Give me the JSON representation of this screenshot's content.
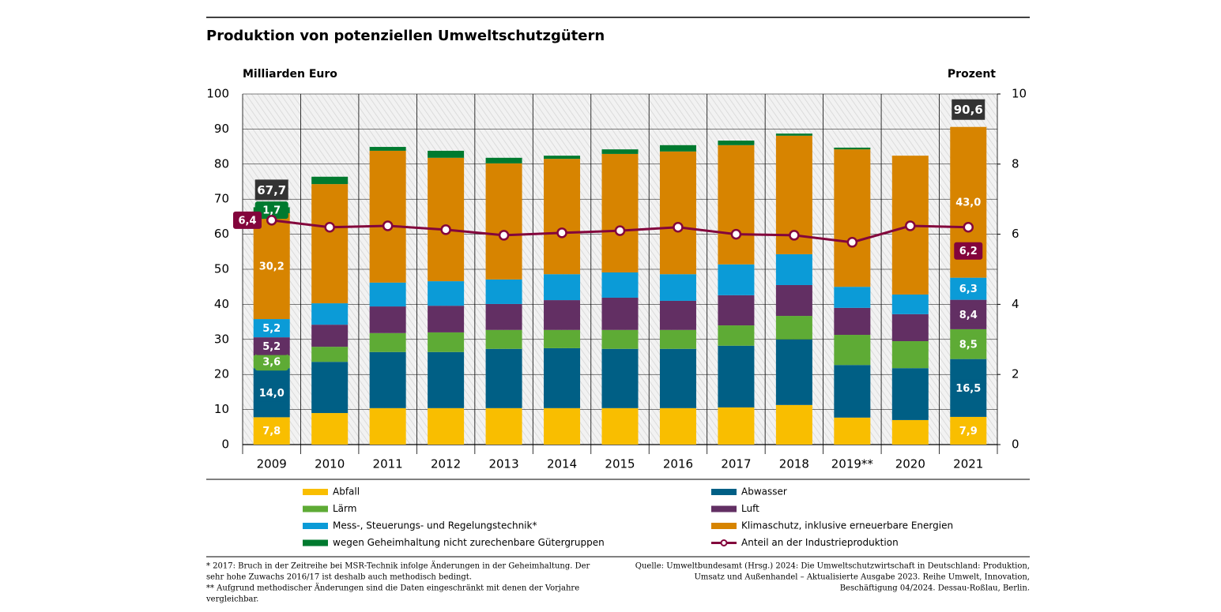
{
  "chart_data": {
    "type": "bar",
    "title": "Produktion von potenziellen Umweltschutzgütern",
    "y_label": "Milliarden Euro",
    "y2_label": "Prozent",
    "categories": [
      "2009",
      "2010",
      "2011",
      "2012",
      "2013",
      "2014",
      "2015",
      "2016",
      "2017",
      "2018",
      "2019**",
      "2020",
      "2021"
    ],
    "ylim": [
      0,
      100
    ],
    "yticks": [
      0,
      10,
      20,
      30,
      40,
      50,
      60,
      70,
      80,
      90,
      100
    ],
    "y2lim": [
      0,
      10
    ],
    "y2ticks": [
      0,
      2,
      4,
      6,
      8,
      10
    ],
    "series": [
      {
        "name": "Abfall",
        "color": "#f9be00",
        "values": [
          7.8,
          9.0,
          10.4,
          10.4,
          10.4,
          10.4,
          10.4,
          10.4,
          10.6,
          11.3,
          7.7,
          7.0,
          7.9
        ],
        "value_labels": [
          "7,8",
          null,
          null,
          null,
          null,
          null,
          null,
          null,
          null,
          null,
          null,
          null,
          "7,9"
        ]
      },
      {
        "name": "Abwasser",
        "color": "#005f85",
        "values": [
          14.0,
          14.6,
          16.0,
          16.0,
          16.9,
          17.1,
          16.9,
          16.9,
          17.6,
          18.7,
          15.0,
          14.8,
          16.5
        ],
        "value_labels": [
          "14,0",
          null,
          null,
          null,
          null,
          null,
          null,
          null,
          null,
          null,
          null,
          null,
          "16,5"
        ]
      },
      {
        "name": "Lärm",
        "color": "#5eab35",
        "values": [
          3.6,
          4.3,
          5.4,
          5.6,
          5.4,
          5.2,
          5.4,
          5.4,
          5.8,
          6.7,
          8.6,
          7.7,
          8.5
        ],
        "value_labels": [
          "3,6",
          null,
          null,
          null,
          null,
          null,
          null,
          null,
          null,
          null,
          null,
          null,
          "8,5"
        ]
      },
      {
        "name": "Luft",
        "color": "#622f63",
        "values": [
          5.2,
          6.3,
          7.6,
          7.6,
          7.4,
          8.5,
          9.2,
          8.3,
          8.6,
          8.8,
          7.7,
          7.7,
          8.4
        ],
        "value_labels": [
          "5,2",
          null,
          null,
          null,
          null,
          null,
          null,
          null,
          null,
          null,
          null,
          null,
          "8,4"
        ]
      },
      {
        "name": "Mess-, Steuerungs- und Regelungstechnik*",
        "color": "#0b9bd7",
        "values": [
          5.2,
          6.1,
          6.8,
          7.0,
          7.0,
          7.4,
          7.2,
          7.6,
          8.8,
          8.8,
          6.0,
          5.6,
          6.3
        ],
        "value_labels": [
          "5,2",
          null,
          null,
          null,
          null,
          null,
          null,
          null,
          null,
          null,
          null,
          null,
          "6,3"
        ]
      },
      {
        "name": "Klimaschutz, inklusive erneuerbare Energien",
        "color": "#d78400",
        "values": [
          30.2,
          34.0,
          37.6,
          35.2,
          33.1,
          32.9,
          33.8,
          35.0,
          34.0,
          33.8,
          39.2,
          39.6,
          43.0
        ],
        "value_labels": [
          "30,2",
          null,
          null,
          null,
          null,
          null,
          null,
          null,
          null,
          null,
          null,
          null,
          "43,0"
        ]
      },
      {
        "name": "wegen Geheimhaltung nicht zurechenbare Gütergruppen",
        "color": "#007a2f",
        "values": [
          1.7,
          2.1,
          1.1,
          2.0,
          1.6,
          0.9,
          1.3,
          1.8,
          1.3,
          0.6,
          0.5,
          null,
          null
        ],
        "value_labels": [
          "1,7",
          null,
          null,
          null,
          null,
          null,
          null,
          null,
          null,
          null,
          null,
          null,
          null
        ]
      },
      {
        "name": "Anteil an der Industrieproduktion",
        "type": "line",
        "axis": "y2",
        "color": "#83053c",
        "values": [
          6.4,
          6.2,
          6.24,
          6.13,
          5.97,
          6.04,
          6.1,
          6.2,
          6.0,
          5.97,
          5.77,
          6.24,
          6.2
        ],
        "value_labels": [
          "6,4",
          null,
          null,
          null,
          null,
          null,
          null,
          null,
          null,
          null,
          null,
          null,
          "6,2"
        ]
      }
    ],
    "totals": [
      67.7,
      null,
      null,
      null,
      null,
      null,
      null,
      null,
      null,
      null,
      null,
      null,
      90.6
    ],
    "total_labels": [
      "67,7",
      null,
      null,
      null,
      null,
      null,
      null,
      null,
      null,
      null,
      null,
      null,
      "90,6"
    ],
    "notes": [
      "* 2017: Bruch in der Zeitreihe bei MSR-Technik infolge Änderungen in der Geheimhaltung. Der",
      "sehr hohe Zuwachs 2016/17 ist deshalb auch methodisch bedingt.",
      "** Aufgrund methodischer Änderungen sind die Daten eingeschränkt mit denen der Vorjahre",
      "vergleichbar."
    ],
    "source": [
      "Quelle: Umweltbundesamt (Hrsg.) 2024: Die Umweltschutzwirtschaft in Deutschland: Produktion,",
      "Umsatz und Außenhandel – Aktualisierte Ausgabe 2023. Reihe Umwelt, Innovation,",
      "Beschäftigung 04/2024. Dessau-Roßlau, Berlin."
    ]
  }
}
